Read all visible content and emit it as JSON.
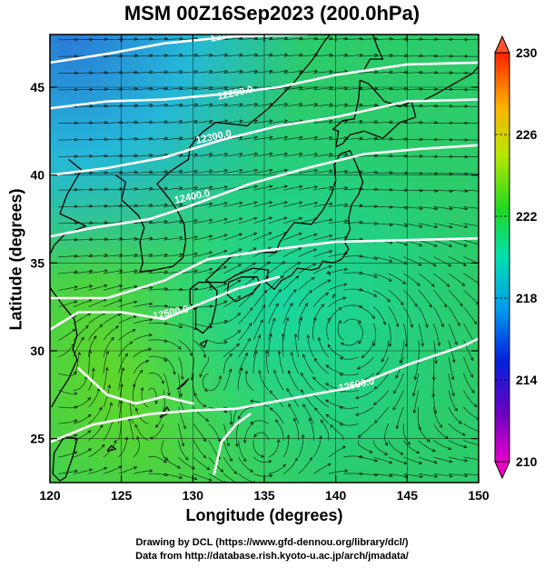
{
  "title": "MSM 00Z16Sep2023 (200.0hPa)",
  "x_axis": {
    "label": "Longitude (degrees)",
    "ticks": [
      "120",
      "125",
      "130",
      "135",
      "140",
      "145",
      "150"
    ]
  },
  "y_axis": {
    "label": "Latitude  (degrees)",
    "ticks": [
      "25",
      "30",
      "35",
      "40",
      "45"
    ]
  },
  "colorbar": {
    "ticks": [
      "210",
      "214",
      "218",
      "222",
      "226",
      "230"
    ]
  },
  "contours": [
    {
      "label": "12100.0",
      "lon": 132.5,
      "lat": 47.8
    },
    {
      "label": "12200.0",
      "lon": 133.0,
      "lat": 44.5
    },
    {
      "label": "12300.0",
      "lon": 131.5,
      "lat": 42.0
    },
    {
      "label": "12400.0",
      "lon": 130.0,
      "lat": 38.6
    },
    {
      "label": "12500.0",
      "lon": 128.5,
      "lat": 32.0
    },
    {
      "label": "12600.0",
      "lon": 141.5,
      "lat": 27.9
    }
  ],
  "credits": {
    "line1": "Drawing by DCL (https://www.gfd-dennou.org/library/dcl/)",
    "line2": "Data from http://database.rish.kyoto-u.ac.jp/arch/jmadata/"
  }
}
